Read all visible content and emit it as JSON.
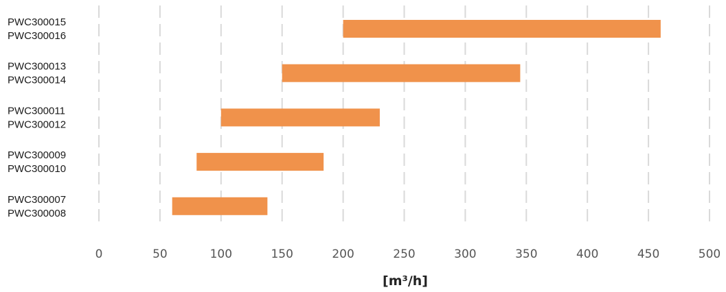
{
  "chart_data": {
    "type": "bar",
    "orientation": "horizontal",
    "style": "floating-range",
    "xlabel": "[m³/h]",
    "xlim": [
      0,
      500
    ],
    "xticks": [
      0,
      50,
      100,
      150,
      200,
      250,
      300,
      350,
      400,
      450,
      500
    ],
    "tick_labels": [
      "0",
      "50",
      "100",
      "150",
      "200",
      "250",
      "300",
      "350",
      "400",
      "450",
      "500"
    ],
    "grid": true,
    "legend": "none",
    "bar_color": "#f0924b",
    "grid_color": "#d9d9d9",
    "categories": [
      {
        "lines": [
          "PWC300015",
          "PWC300016"
        ],
        "range": [
          200,
          460
        ]
      },
      {
        "lines": [
          "PWC300013",
          "PWC300014"
        ],
        "range": [
          150,
          345
        ]
      },
      {
        "lines": [
          "PWC300011",
          "PWC300012"
        ],
        "range": [
          100,
          230
        ]
      },
      {
        "lines": [
          "PWC300009",
          "PWC300010"
        ],
        "range": [
          80,
          184
        ]
      },
      {
        "lines": [
          "PWC300007",
          "PWC300008"
        ],
        "range": [
          60,
          138
        ]
      }
    ]
  }
}
